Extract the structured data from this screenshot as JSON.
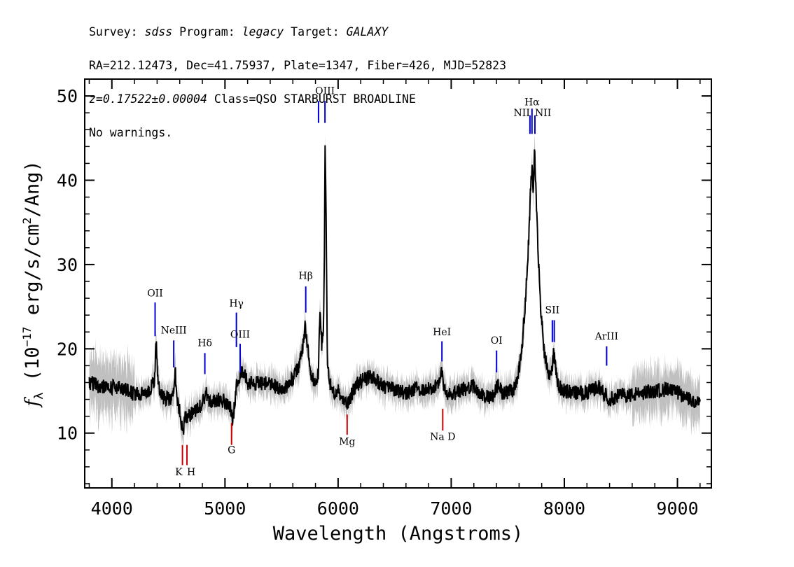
{
  "header": {
    "survey_label": "Survey:",
    "survey": "sdss",
    "program_label": "Program:",
    "program": "legacy",
    "target_label": "Target:",
    "target": "GALAXY",
    "coords": "RA=212.12473, Dec=41.75937, Plate=1347, Fiber=426, MJD=52823",
    "redshift": "z=0.17522±0.00004",
    "class_text": "Class=QSO STARBURST BROADLINE",
    "warnings": "No warnings."
  },
  "colors": {
    "flux": "#000000",
    "error": "#c0c0c0",
    "emission": "#0000cc",
    "absorption": "#cc0000"
  },
  "chart_data": {
    "type": "line",
    "title": "",
    "xlabel": "Wavelength (Angstroms)",
    "ylabel": "f_λ (10^-17 erg/s/cm^2/Ang)",
    "xlim": [
      3760,
      9300
    ],
    "ylim": [
      3.5,
      52
    ],
    "xticks": [
      4000,
      5000,
      6000,
      7000,
      8000,
      9000
    ],
    "xtick_labels": [
      "4000",
      "5000",
      "6000",
      "7000",
      "8000",
      "9000"
    ],
    "yticks": [
      10,
      20,
      30,
      40,
      50
    ],
    "ytick_labels": [
      "10",
      "20",
      "30",
      "40",
      "50"
    ],
    "series": [
      {
        "name": "flux",
        "style": "black line, approximate trace"
      },
      {
        "name": "error",
        "style": "gray band"
      }
    ],
    "anchor_points": [
      [
        3800,
        16
      ],
      [
        3900,
        15.5
      ],
      [
        4000,
        15.5
      ],
      [
        4100,
        15.2
      ],
      [
        4200,
        14.6
      ],
      [
        4300,
        14.8
      ],
      [
        4350,
        15.5
      ],
      [
        4380,
        16.5
      ],
      [
        4392,
        21.5
      ],
      [
        4405,
        16.5
      ],
      [
        4430,
        14.5
      ],
      [
        4500,
        14.0
      ],
      [
        4540,
        14.5
      ],
      [
        4560,
        17.5
      ],
      [
        4575,
        14.0
      ],
      [
        4600,
        12.5
      ],
      [
        4625,
        10.0
      ],
      [
        4650,
        12.0
      ],
      [
        4700,
        12.2
      ],
      [
        4800,
        13.5
      ],
      [
        4830,
        14.8
      ],
      [
        4860,
        13.5
      ],
      [
        4950,
        14.0
      ],
      [
        5040,
        13.5
      ],
      [
        5070,
        11.5
      ],
      [
        5100,
        15.5
      ],
      [
        5130,
        16.8
      ],
      [
        5150,
        17.5
      ],
      [
        5200,
        16.0
      ],
      [
        5300,
        16.0
      ],
      [
        5400,
        15.8
      ],
      [
        5500,
        15.3
      ],
      [
        5550,
        15.5
      ],
      [
        5600,
        16.5
      ],
      [
        5650,
        17.8
      ],
      [
        5690,
        20.5
      ],
      [
        5710,
        23.0
      ],
      [
        5730,
        20.5
      ],
      [
        5760,
        17.0
      ],
      [
        5800,
        15.5
      ],
      [
        5825,
        17.0
      ],
      [
        5840,
        25.0
      ],
      [
        5855,
        20.0
      ],
      [
        5870,
        22.0
      ],
      [
        5880,
        33.0
      ],
      [
        5885,
        44.5
      ],
      [
        5895,
        34.0
      ],
      [
        5905,
        18.0
      ],
      [
        5920,
        16.5
      ],
      [
        5950,
        15.0
      ],
      [
        6000,
        15.0
      ],
      [
        6080,
        13.5
      ],
      [
        6150,
        15.5
      ],
      [
        6200,
        16.2
      ],
      [
        6300,
        16.8
      ],
      [
        6400,
        15.5
      ],
      [
        6500,
        15.2
      ],
      [
        6600,
        14.8
      ],
      [
        6700,
        15.2
      ],
      [
        6800,
        15.3
      ],
      [
        6880,
        15.5
      ],
      [
        6912,
        17.5
      ],
      [
        6950,
        14.5
      ],
      [
        7000,
        14.5
      ],
      [
        7100,
        15.2
      ],
      [
        7200,
        15.5
      ],
      [
        7300,
        14.2
      ],
      [
        7380,
        14.5
      ],
      [
        7415,
        15.8
      ],
      [
        7450,
        14.8
      ],
      [
        7550,
        15.0
      ],
      [
        7600,
        17.5
      ],
      [
        7630,
        21.0
      ],
      [
        7660,
        26.5
      ],
      [
        7685,
        33.0
      ],
      [
        7700,
        38.5
      ],
      [
        7715,
        42.0
      ],
      [
        7725,
        38.0
      ],
      [
        7738,
        44.0
      ],
      [
        7750,
        38.0
      ],
      [
        7765,
        32.5
      ],
      [
        7790,
        25.0
      ],
      [
        7820,
        20.0
      ],
      [
        7860,
        17.0
      ],
      [
        7890,
        17.5
      ],
      [
        7905,
        19.5
      ],
      [
        7920,
        18.0
      ],
      [
        7950,
        15.5
      ],
      [
        8000,
        15.0
      ],
      [
        8100,
        14.8
      ],
      [
        8200,
        14.8
      ],
      [
        8300,
        15.5
      ],
      [
        8400,
        14.0
      ],
      [
        8500,
        14.5
      ],
      [
        8600,
        14.5
      ],
      [
        8700,
        14.8
      ],
      [
        8800,
        15.0
      ],
      [
        8900,
        15.2
      ],
      [
        9000,
        14.8
      ],
      [
        9100,
        14.0
      ],
      [
        9200,
        13.5
      ]
    ],
    "line_markers": [
      {
        "label": "OII",
        "wavelength": 4382,
        "kind": "emission",
        "y0": 21.5,
        "y1": 25.5,
        "label_y": 26.2
      },
      {
        "label": "NeIII",
        "wavelength": 4547,
        "kind": "emission",
        "y0": 17.8,
        "y1": 21.0,
        "label_y": 21.8
      },
      {
        "label": "Hδ",
        "wavelength": 4822,
        "kind": "emission",
        "y0": 17.0,
        "y1": 19.5,
        "label_y": 20.3
      },
      {
        "label": "Hγ",
        "wavelength": 5101,
        "kind": "emission",
        "y0": 20.2,
        "y1": 24.3,
        "label_y": 25.0
      },
      {
        "label": "OIII",
        "wavelength": 5134,
        "kind": "emission",
        "y0": 17.2,
        "y1": 20.6,
        "label_y": 21.3
      },
      {
        "label": "Hβ",
        "wavelength": 5714,
        "kind": "emission",
        "y0": 24.3,
        "y1": 27.4,
        "label_y": 28.3
      },
      {
        "label": "OIII",
        "wavelength": 5827,
        "kind": "emission",
        "y0": 46.8,
        "y1": 49.4,
        "label_y": null
      },
      {
        "label": "OIII",
        "wavelength": 5884,
        "kind": "emission",
        "y0": 46.8,
        "y1": 49.4,
        "label_y": 50.2
      },
      {
        "label": "NII",
        "wavelength": 7696,
        "kind": "emission",
        "y0": 45.5,
        "y1": 47.7,
        "label_y": 47.6
      },
      {
        "label": "Hα",
        "wavelength": 7714,
        "kind": "emission",
        "y0": 45.5,
        "y1": 48.5,
        "label_y": 48.9
      },
      {
        "label": "NII",
        "wavelength": 7740,
        "kind": "emission",
        "y0": 45.5,
        "y1": 47.7,
        "label_y": 47.6
      },
      {
        "label": "SII",
        "wavelength": 7894,
        "kind": "emission",
        "y0": 20.8,
        "y1": 23.4,
        "label_y": 24.2
      },
      {
        "label": "SII",
        "wavelength": 7911,
        "kind": "emission",
        "y0": 20.8,
        "y1": 23.4,
        "label_y": null
      },
      {
        "label": "HeI",
        "wavelength": 6918,
        "kind": "emission",
        "y0": 18.5,
        "y1": 20.9,
        "label_y": 21.6
      },
      {
        "label": "OI",
        "wavelength": 7401,
        "kind": "emission",
        "y0": 17.2,
        "y1": 19.8,
        "label_y": 20.6
      },
      {
        "label": "ArIII",
        "wavelength": 8374,
        "kind": "emission",
        "y0": 18.0,
        "y1": 20.3,
        "label_y": 21.1
      },
      {
        "label": "K",
        "wavelength": 4624,
        "kind": "absorption",
        "y0": 6.2,
        "y1": 8.6,
        "label_y": 5.0
      },
      {
        "label": "H",
        "wavelength": 4664,
        "kind": "absorption",
        "y0": 6.2,
        "y1": 8.6,
        "label_y": 5.0
      },
      {
        "label": "G",
        "wavelength": 5058,
        "kind": "absorption",
        "y0": 8.6,
        "y1": 11.2,
        "label_y": 7.6
      },
      {
        "label": "Mg",
        "wavelength": 6080,
        "kind": "absorption",
        "y0": 9.8,
        "y1": 12.2,
        "label_y": 8.6
      },
      {
        "label": "Na D",
        "wavelength": 6925,
        "kind": "absorption",
        "y0": 10.3,
        "y1": 12.9,
        "label_y": 9.2
      }
    ]
  }
}
